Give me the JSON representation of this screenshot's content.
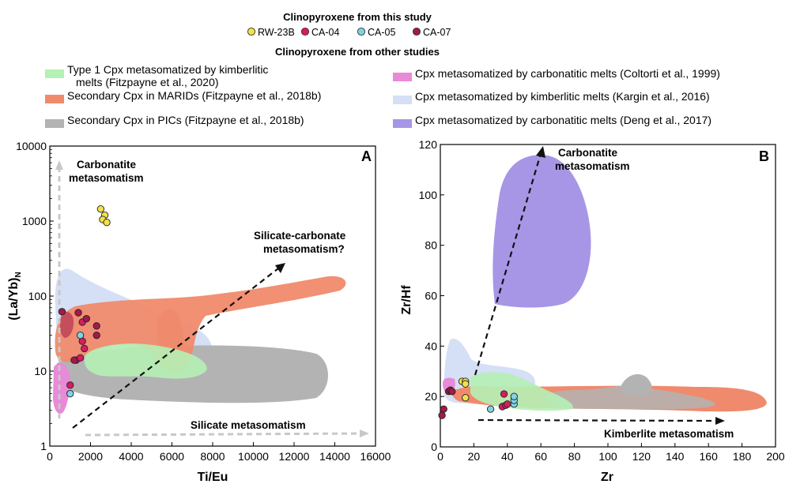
{
  "legend": {
    "this_study_title": "Clinopyroxene from this study",
    "this_study": [
      {
        "name": "RW-23B",
        "color": "#f2e14a"
      },
      {
        "name": "CA-04",
        "color": "#d81b60"
      },
      {
        "name": "CA-05",
        "color": "#7fd3e6"
      },
      {
        "name": "CA-07",
        "color": "#a3194a"
      }
    ],
    "other_studies_title": "Clinopyroxene from other studies",
    "other_studies": [
      {
        "label_line1": "Type 1 Cpx metasomatized by kimberlitic",
        "label_line2": "melts (Fitzpayne et al., 2020)",
        "color": "#b5f0b5"
      },
      {
        "label_line1": "Cpx metasomatized by carbonatitic melts (Coltorti et al., 1999)",
        "label_line2": "",
        "color": "#e88ad8"
      },
      {
        "label_line1": "Secondary Cpx in MARIDs (Fitzpayne et al., 2018b)",
        "label_line2": "",
        "color": "#f08a6c"
      },
      {
        "label_line1": "Cpx metasomatized by kimberlitic melts (Kargin et al., 2016)",
        "label_line2": "",
        "color": "#d5dff5"
      },
      {
        "label_line1": "Secondary Cpx in PICs (Fitzpayne et al., 2018b)",
        "label_line2": "",
        "color": "#b3b3b3"
      },
      {
        "label_line1": "Cpx metasomatized by carbonatitic melts (Deng et al., 2017)",
        "label_line2": "",
        "color": "#a796e6"
      }
    ]
  },
  "chart_data": [
    {
      "type": "scatter",
      "panel": "A",
      "xlabel": "Ti/Eu",
      "ylabel": "(La/Yb)",
      "ylabel_sub": "N",
      "xlim": [
        0,
        16000
      ],
      "ylim": [
        1,
        10000
      ],
      "yscale": "log",
      "x_ticks": [
        "0",
        "2000",
        "4000",
        "6000",
        "8000",
        "10000",
        "12000",
        "14000",
        "16000"
      ],
      "y_ticks": [
        "1",
        "10",
        "100",
        "1000",
        "10000"
      ],
      "annotations": {
        "carbonatite": [
          "Carbonatite",
          "metasomatism"
        ],
        "silicate_carbonate": [
          "Silicate-carbonate",
          "metasomatism?"
        ],
        "silicate": "Silicate metasomatism"
      },
      "series": [
        {
          "name": "RW-23B",
          "points": [
            [
              2500,
              1450
            ],
            [
              2700,
              1200
            ],
            [
              2600,
              1050
            ],
            [
              2800,
              960
            ]
          ]
        },
        {
          "name": "CA-04",
          "points": [
            [
              1300,
              14
            ],
            [
              1500,
              15
            ],
            [
              1600,
              25
            ],
            [
              1700,
              20
            ],
            [
              1600,
              45
            ],
            [
              1000,
              6.5
            ]
          ]
        },
        {
          "name": "CA-05",
          "points": [
            [
              1500,
              30
            ],
            [
              1000,
              5
            ]
          ]
        },
        {
          "name": "CA-07",
          "points": [
            [
              600,
              62
            ],
            [
              1400,
              60
            ],
            [
              1800,
              50
            ],
            [
              2300,
              40
            ],
            [
              2300,
              30
            ],
            [
              1200,
              14
            ]
          ]
        }
      ]
    },
    {
      "type": "scatter",
      "panel": "B",
      "xlabel": "Zr",
      "ylabel": "Zr/Hf",
      "xlim": [
        0,
        200
      ],
      "ylim": [
        0,
        120
      ],
      "x_ticks": [
        "0",
        "20",
        "40",
        "60",
        "80",
        "100",
        "120",
        "140",
        "160",
        "180",
        "200"
      ],
      "y_ticks": [
        "0",
        "20",
        "40",
        "60",
        "80",
        "100",
        "120"
      ],
      "annotations": {
        "carbonatite": [
          "Carbonatite",
          "metasomatism"
        ],
        "kimberlite": "Kimberlite metasomatism"
      },
      "series": [
        {
          "name": "RW-23B",
          "points": [
            [
              13,
              26
            ],
            [
              15,
              26
            ],
            [
              15,
              25
            ],
            [
              15,
              19.5
            ]
          ]
        },
        {
          "name": "CA-04",
          "points": [
            [
              37,
              16
            ],
            [
              38,
              21
            ],
            [
              39,
              16.5
            ],
            [
              40,
              17
            ]
          ]
        },
        {
          "name": "CA-05",
          "points": [
            [
              30,
              15
            ],
            [
              44,
              17
            ],
            [
              44,
              18.5
            ],
            [
              44,
              20
            ]
          ]
        },
        {
          "name": "CA-07",
          "points": [
            [
              1,
              12.5
            ],
            [
              2,
              15
            ],
            [
              5,
              22
            ],
            [
              6,
              22.5
            ],
            [
              7,
              22
            ]
          ]
        }
      ]
    }
  ]
}
